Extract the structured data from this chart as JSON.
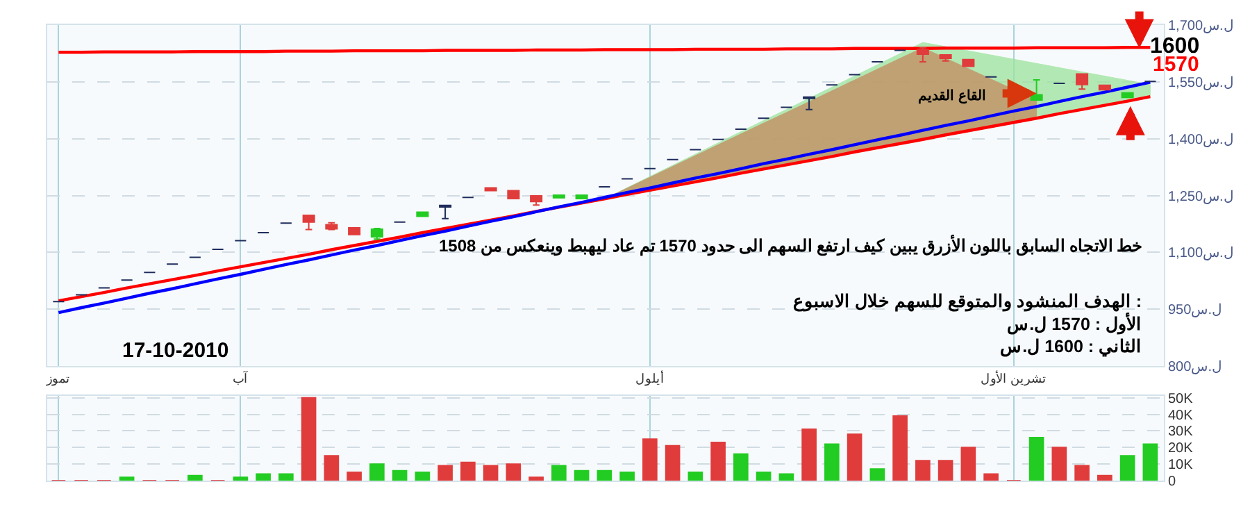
{
  "chart_data": [
    {
      "type": "candlestick",
      "categories": [
        "تموز",
        null,
        null,
        null,
        null,
        null,
        null,
        null,
        "آب",
        null,
        null,
        null,
        null,
        null,
        null,
        null,
        null,
        null,
        null,
        null,
        null,
        null,
        null,
        null,
        null,
        null,
        "أيلول",
        null,
        null,
        null,
        null,
        null,
        null,
        null,
        null,
        null,
        null,
        null,
        null,
        null,
        null,
        null,
        "تشرين الأول",
        null,
        null,
        null,
        null,
        null,
        null
      ],
      "ohlc": [
        [
          970,
          970,
          970,
          970
        ],
        [
          988,
          988,
          988,
          988
        ],
        [
          1006,
          1006,
          1006,
          1006
        ],
        [
          1027,
          1027,
          1027,
          1027
        ],
        [
          1047,
          1047,
          1047,
          1047
        ],
        [
          1069,
          1069,
          1069,
          1069
        ],
        [
          1087,
          1087,
          1087,
          1087
        ],
        [
          1108,
          1108,
          1108,
          1108
        ],
        [
          1131,
          1131,
          1131,
          1131
        ],
        [
          1152,
          1152,
          1152,
          1152
        ],
        [
          1177,
          1177,
          1177,
          1177
        ],
        [
          1198,
          1198,
          1160,
          1180
        ],
        [
          1173,
          1178,
          1160,
          1162
        ],
        [
          1165,
          1165,
          1147,
          1147
        ],
        [
          1141,
          1163,
          1135,
          1161
        ],
        [
          1180,
          1180,
          1180,
          1180
        ],
        [
          1195,
          1206,
          1195,
          1206
        ],
        [
          1220,
          1224,
          1189,
          1224
        ],
        [
          1245,
          1245,
          1245,
          1245
        ],
        [
          1270,
          1270,
          1263,
          1263
        ],
        [
          1263,
          1263,
          1242,
          1242
        ],
        [
          1249,
          1249,
          1225,
          1234
        ],
        [
          1244,
          1251,
          1244,
          1251
        ],
        [
          1242,
          1251,
          1242,
          1251
        ],
        [
          1273,
          1273,
          1273,
          1273
        ],
        [
          1294,
          1294,
          1294,
          1294
        ],
        [
          1321,
          1321,
          1321,
          1321
        ],
        [
          1345,
          1345,
          1345,
          1345
        ],
        [
          1371,
          1371,
          1371,
          1371
        ],
        [
          1398,
          1398,
          1398,
          1398
        ],
        [
          1425,
          1425,
          1425,
          1425
        ],
        [
          1454,
          1454,
          1454,
          1454
        ],
        [
          1483,
          1483,
          1483,
          1483
        ],
        [
          1506,
          1510,
          1477,
          1510
        ],
        [
          1542,
          1542,
          1542,
          1542
        ],
        [
          1569,
          1569,
          1569,
          1569
        ],
        [
          1603,
          1603,
          1603,
          1603
        ],
        [
          1633,
          1633,
          1633,
          1633
        ],
        [
          1635,
          1640,
          1603,
          1623
        ],
        [
          1621,
          1621,
          1605,
          1612
        ],
        [
          1609,
          1609,
          1591,
          1591
        ],
        [
          1563,
          1563,
          1563,
          1563
        ],
        null,
        [
          1502,
          1555,
          1502,
          1516
        ],
        [
          1546,
          1546,
          1546,
          1546
        ],
        [
          1571,
          1571,
          1531,
          1543
        ],
        [
          1541,
          1541,
          1529,
          1529
        ],
        [
          1509,
          1521,
          1509,
          1521
        ],
        [
          1551,
          1551,
          1551,
          1551
        ]
      ],
      "colors": [
        "#1f2d5c",
        "#1f2d5c",
        "#1f2d5c",
        "#1f2d5c",
        "#1f2d5c",
        "#1f2d5c",
        "#1f2d5c",
        "#1f2d5c",
        "#1f2d5c",
        "#1f2d5c",
        "#1f2d5c",
        "#e03c3c",
        "#e03c3c",
        "#e03c3c",
        "#22cc22",
        "#1f2d5c",
        "#22cc22",
        "#1f2d5c",
        "#1f2d5c",
        "#e03c3c",
        "#e03c3c",
        "#e03c3c",
        "#22cc22",
        "#22cc22",
        "#1f2d5c",
        "#1f2d5c",
        "#1f2d5c",
        "#1f2d5c",
        "#1f2d5c",
        "#1f2d5c",
        "#1f2d5c",
        "#1f2d5c",
        "#1f2d5c",
        "#1f2d5c",
        "#1f2d5c",
        "#1f2d5c",
        "#1f2d5c",
        "#1f2d5c",
        "#e03c3c",
        "#e03c3c",
        "#e03c3c",
        "#1f2d5c",
        null,
        "#22cc22",
        "#1f2d5c",
        "#e03c3c",
        "#e03c3c",
        "#22cc22",
        "#1f2d5c"
      ],
      "series": [
        {
          "type": "line",
          "color": "#ff0000",
          "values": [
            972,
            983,
            994,
            1006,
            1017,
            1028,
            1039,
            1051,
            1062,
            1073,
            1084,
            1095,
            1107,
            1118,
            1129,
            1140,
            1152,
            1163,
            1174,
            1185,
            1196,
            1208,
            1219,
            1230,
            1241,
            1253,
            1264,
            1275,
            1286,
            1297,
            1309,
            1320,
            1331,
            1342,
            1353,
            1365,
            1376,
            1387,
            1398,
            1410,
            1421,
            1432,
            1443,
            1454,
            1466,
            1477,
            1488,
            1499,
            1511
          ]
        },
        {
          "type": "area",
          "color": "#9be39b",
          "values": [
            null,
            null,
            null,
            null,
            null,
            null,
            null,
            null,
            null,
            null,
            null,
            null,
            null,
            null,
            null,
            null,
            null,
            null,
            null,
            null,
            null,
            null,
            null,
            null,
            1241,
            1271,
            1300,
            1330,
            1359,
            1389,
            1418,
            1448,
            1477,
            1507,
            1536,
            1566,
            1595,
            1625,
            1654,
            1643,
            1632,
            1621,
            1610,
            1598,
            1587,
            1576,
            1565,
            1554,
            1543
          ]
        },
        {
          "type": "area",
          "color": "#c48a5e",
          "values": [
            null,
            null,
            null,
            null,
            null,
            null,
            null,
            null,
            null,
            null,
            null,
            null,
            null,
            null,
            null,
            null,
            null,
            null,
            null,
            null,
            null,
            null,
            null,
            null,
            1241,
            1270,
            1298,
            1327,
            1355,
            1384,
            1412,
            1441,
            1469,
            1498,
            1526,
            1555,
            1583,
            1612,
            1640,
            1612,
            1585,
            1557,
            null,
            1502,
            null,
            null,
            null,
            null,
            null
          ]
        },
        {
          "type": "line",
          "color": "#ff0000",
          "values": [
            1628,
            1628,
            1629,
            1629,
            1629,
            1629,
            1630,
            1630,
            1630,
            1630,
            1631,
            1631,
            1631,
            1632,
            1632,
            1632,
            1632,
            1633,
            1633,
            1633,
            1633,
            1634,
            1634,
            1634,
            1635,
            1635,
            1635,
            1635,
            1636,
            1636,
            1636,
            1636,
            1637,
            1637,
            1637,
            1638,
            1638,
            1638,
            1638,
            1639,
            1639,
            1639,
            1639,
            1640,
            1640,
            1640,
            1640,
            1641,
            1641
          ]
        },
        {
          "type": "line",
          "color": "#0000ff",
          "values": [
            941,
            954,
            966,
            979,
            992,
            1004,
            1017,
            1030,
            1042,
            1055,
            1068,
            1080,
            1093,
            1106,
            1118,
            1131,
            1144,
            1156,
            1169,
            1182,
            1194,
            1207,
            1220,
            1232,
            1245,
            1258,
            1270,
            1283,
            1296,
            1308,
            1321,
            1334,
            1346,
            1359,
            1371,
            1384,
            1397,
            1409,
            1422,
            1435,
            1447,
            1460,
            1473,
            1485,
            1498,
            1511,
            1523,
            1536,
            1549
          ]
        }
      ],
      "ylim": [
        800,
        1700
      ],
      "yticks": [
        {
          "value": 800,
          "label": "800ل.س"
        },
        {
          "value": 950,
          "label": "950ل.س"
        },
        {
          "value": 1100,
          "label": "1,100ل.س"
        },
        {
          "value": 1250,
          "label": "1,250ل.س"
        },
        {
          "value": 1400,
          "label": "1,400ل.س"
        },
        {
          "value": 1550,
          "label": "1,550ل.س"
        },
        {
          "value": 1700,
          "label": "1,700ل.س"
        }
      ],
      "grid": true,
      "annotations": [
        "1600",
        "1570",
        "القاع القديم",
        "خط الاتجاه السابق باللون الأزرق يبين كيف ارتفع السهم الى حدود 1570 تم عاد ليهبط وينعكس من 1508",
        "الهدف المنشود والمتوقع للسهم خلال الاسبوع :\nالأول : 1570 ل.س\nالثاني : 1600 ل.س",
        "17-10-2010"
      ]
    },
    {
      "type": "bar",
      "categories": [
        null,
        null,
        null,
        null,
        null,
        null,
        null,
        null,
        null,
        null,
        null,
        null,
        null,
        null,
        null,
        null,
        null,
        null,
        null,
        null,
        null,
        null,
        null,
        null,
        null,
        null,
        null,
        null,
        null,
        null,
        null,
        null,
        null,
        null,
        null,
        null,
        null,
        null,
        null,
        null,
        null,
        null,
        null,
        null,
        null,
        null,
        null,
        null,
        null
      ],
      "values": [
        0,
        0,
        0,
        2000,
        0,
        0,
        3000,
        0,
        2000,
        4000,
        4000,
        50000,
        15000,
        5000,
        10000,
        6000,
        5000,
        9000,
        11000,
        9000,
        10000,
        2000,
        9000,
        6000,
        6000,
        5000,
        25000,
        21000,
        5000,
        23000,
        16000,
        5000,
        4000,
        31000,
        22000,
        28000,
        7000,
        39000,
        12000,
        12000,
        20000,
        4000,
        0,
        26000,
        20000,
        9000,
        3000,
        15000,
        22000
      ],
      "colors": [
        "#e03c3c",
        "#e03c3c",
        "#e03c3c",
        "#22cc22",
        "#e03c3c",
        "#e03c3c",
        "#22cc22",
        "#e03c3c",
        "#22cc22",
        "#22cc22",
        "#22cc22",
        "#e03c3c",
        "#e03c3c",
        "#e03c3c",
        "#22cc22",
        "#22cc22",
        "#22cc22",
        "#e03c3c",
        "#e03c3c",
        "#e03c3c",
        "#e03c3c",
        "#e03c3c",
        "#22cc22",
        "#22cc22",
        "#22cc22",
        "#22cc22",
        "#e03c3c",
        "#e03c3c",
        "#22cc22",
        "#e03c3c",
        "#22cc22",
        "#22cc22",
        "#22cc22",
        "#e03c3c",
        "#22cc22",
        "#e03c3c",
        "#22cc22",
        "#e03c3c",
        "#e03c3c",
        "#e03c3c",
        "#e03c3c",
        "#e03c3c",
        "#e03c3c",
        "#22cc22",
        "#e03c3c",
        "#e03c3c",
        "#e03c3c",
        "#22cc22",
        "#22cc22"
      ],
      "ylim": [
        0,
        51000
      ],
      "yticks": [
        0,
        {
          "value": 10000,
          "label": "10K"
        },
        {
          "value": 20000,
          "label": "20K"
        },
        {
          "value": 30000,
          "label": "30K"
        },
        {
          "value": 40000,
          "label": "40K"
        },
        {
          "value": 50000,
          "label": "50K"
        }
      ],
      "tick_labels": "y",
      "grid": true
    }
  ]
}
